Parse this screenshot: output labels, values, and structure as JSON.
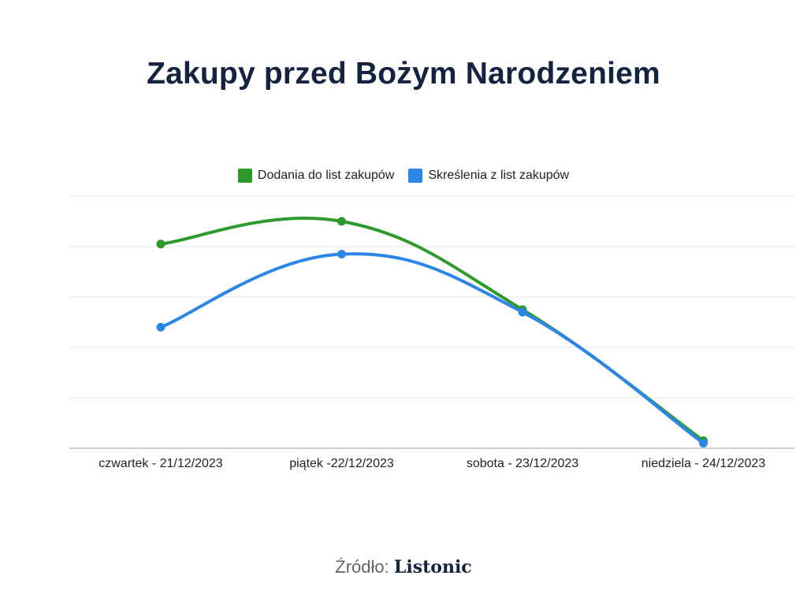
{
  "chart_data": {
    "type": "line",
    "title": "Zakupy przed Bożym Narodzeniem",
    "categories": [
      "czwartek - 21/12/2023",
      "piątek -22/12/2023",
      "sobota - 23/12/2023",
      "niedziela - 24/12/2023"
    ],
    "series": [
      {
        "name": "Dodania do list zakupów",
        "values": [
          81,
          90,
          55,
          3
        ],
        "color": "#2e9a2e"
      },
      {
        "name": "Skreślenia z list zakupów",
        "values": [
          48,
          77,
          54,
          2
        ],
        "color": "#2c86e8"
      }
    ],
    "ylim": [
      0,
      100
    ],
    "grid": true,
    "legend": "top"
  },
  "source": {
    "label": "Źródło:",
    "brand": "Listonic"
  }
}
